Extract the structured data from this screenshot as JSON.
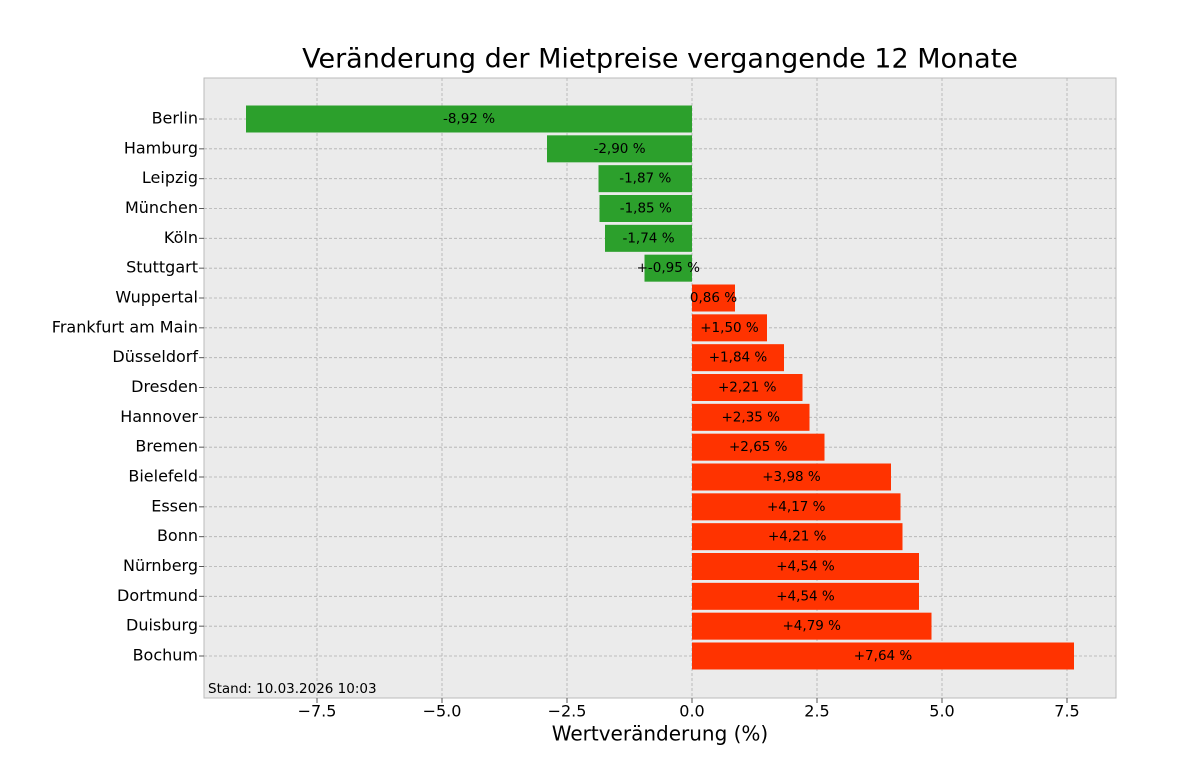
{
  "chart_data": {
    "type": "barh",
    "title": "Veränderung der Mietpreise vergangende 12 Monate",
    "x_label": "Wertveränderung (%)",
    "annotation": "Stand: 10.03.2026 10:03",
    "categories": [
      "Berlin",
      "Hamburg",
      "Leipzig",
      "München",
      "Köln",
      "Stuttgart",
      "Wuppertal",
      "Frankfurt am Main",
      "Düsseldorf",
      "Dresden",
      "Hannover",
      "Bremen",
      "Bielefeld",
      "Essen",
      "Bonn",
      "Nürnberg",
      "Dortmund",
      "Duisburg",
      "Bochum"
    ],
    "values": [
      -8.92,
      -2.9,
      -1.87,
      -1.85,
      -1.74,
      -0.95,
      0.86,
      1.5,
      1.84,
      2.21,
      2.35,
      2.65,
      3.98,
      4.17,
      4.21,
      4.54,
      4.54,
      4.79,
      7.64
    ],
    "value_labels": [
      "-8,92 %",
      "-2,90 %",
      "-1,87 %",
      "-1,85 %",
      "-1,74 %",
      "+-0,95 %",
      "0,86 %",
      "+1,50 %",
      "+1,84 %",
      "+2,21 %",
      "+2,35 %",
      "+2,65 %",
      "+3,98 %",
      "+4,17 %",
      "+4,21 %",
      "+4,54 %",
      "+4,54 %",
      "+4,79 %",
      "+7,64 %"
    ],
    "colors": [
      "#2ca02c",
      "#2ca02c",
      "#2ca02c",
      "#2ca02c",
      "#2ca02c",
      "#2ca02c",
      "#ff3300",
      "#ff3300",
      "#ff3300",
      "#ff3300",
      "#ff3300",
      "#ff3300",
      "#ff3300",
      "#ff3300",
      "#ff3300",
      "#ff3300",
      "#ff3300",
      "#ff3300",
      "#ff3300"
    ],
    "xlim": [
      -9.76,
      8.48
    ],
    "xticks": [
      {
        "value": -7.5,
        "label": "−7.5"
      },
      {
        "value": -5,
        "label": "−5.0"
      },
      {
        "value": -2.5,
        "label": "−2.5"
      },
      {
        "value": 0,
        "label": "0.0"
      },
      2.5,
      {
        "value": 5,
        "label": "5.0"
      },
      7.5
    ],
    "grid": true
  }
}
